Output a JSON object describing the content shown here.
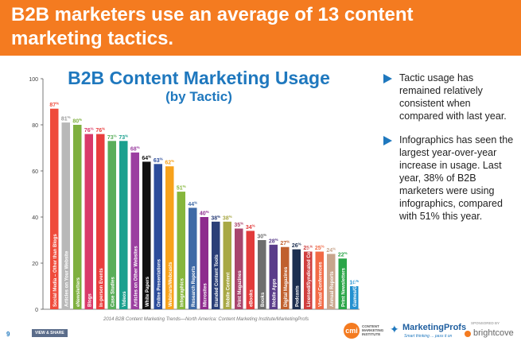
{
  "header": {
    "headline": "B2B marketers use an average of 13 content marketing tactics."
  },
  "chart_title": {
    "line1": "B2B Content Marketing Usage",
    "line2": "(by Tactic)"
  },
  "bullets": [
    "Tactic usage has remained relatively consistent when compared with last year.",
    "Infographics has seen the largest year-over-year increase in usage. Last year, 38% of B2B marketers were using infographics, compared with 51% this year."
  ],
  "source": "2014 B2B Content Marketing Trends—North America: Content Marketing Institute/MarketingProfs",
  "footer": {
    "page_number": "9",
    "view_share": "VIEW & SHARE",
    "cmi_mark": "cmi",
    "cmi_text": "CONTENT MARKETING INSTITUTE",
    "mp_name": "MarketingProfs",
    "mp_tagline": "Smart thinking ... pass it on",
    "sponsor_label": "SPONSORED BY",
    "bc_name": "brightcove"
  },
  "chart_data": {
    "type": "bar",
    "title": "B2B Content Marketing Usage",
    "subtitle": "(by Tactic)",
    "ylim": [
      0,
      100
    ],
    "yticks": [
      0,
      20,
      40,
      60,
      80,
      100
    ],
    "value_suffix": "%",
    "categories": [
      "Social Media – Other than Blogs",
      "Articles on Your Website",
      "eNewsletters",
      "Blogs",
      "In-person Events",
      "Case Studies",
      "Videos",
      "Articles on Other Websites",
      "White Papers",
      "Online Presentations",
      "Webinars/Webcasts",
      "Infographics",
      "Research Reports",
      "Microsites",
      "Branded Content Tools",
      "Mobile Content",
      "Print Magazines",
      "eBooks",
      "Books",
      "Mobile Apps",
      "Digital Magazines",
      "Podcasts",
      "Licensed/Syndicated Content",
      "Virtual Conferences",
      "Annual Reports",
      "Print Newsletters",
      "Games/Gamification"
    ],
    "values": [
      87,
      81,
      80,
      76,
      76,
      73,
      73,
      68,
      64,
      63,
      62,
      51,
      44,
      40,
      38,
      38,
      35,
      34,
      30,
      28,
      27,
      26,
      25,
      25,
      24,
      22,
      10
    ],
    "colors": [
      "#ef4b3b",
      "#b8b8b8",
      "#7fb03f",
      "#d93a6a",
      "#e93d3d",
      "#5aae5a",
      "#1aa08e",
      "#9b3fa0",
      "#111111",
      "#2b4c9b",
      "#f7a21b",
      "#86b63c",
      "#3f6aa6",
      "#8e2b8e",
      "#2b3f78",
      "#a8a845",
      "#a8456d",
      "#e23b3b",
      "#6e6e6e",
      "#5a3d8a",
      "#c0602f",
      "#1c2f50",
      "#cf3e3e",
      "#f26a46",
      "#c8a58c",
      "#2aa548",
      "#2390d0"
    ],
    "label_colors": [
      "#ef4b3b",
      "#9a9a9a",
      "#7fb03f",
      "#d93a6a",
      "#e93d3d",
      "#5aae5a",
      "#1aa08e",
      "#9b3fa0",
      "#111111",
      "#2b4c9b",
      "#f7a21b",
      "#86b63c",
      "#3f6aa6",
      "#8e2b8e",
      "#2b3f78",
      "#a8a845",
      "#a8456d",
      "#e23b3b",
      "#6e6e6e",
      "#5a3d8a",
      "#c0602f",
      "#1c2f50",
      "#cf3e3e",
      "#f26a46",
      "#c8a58c",
      "#2aa548",
      "#2390d0"
    ]
  }
}
